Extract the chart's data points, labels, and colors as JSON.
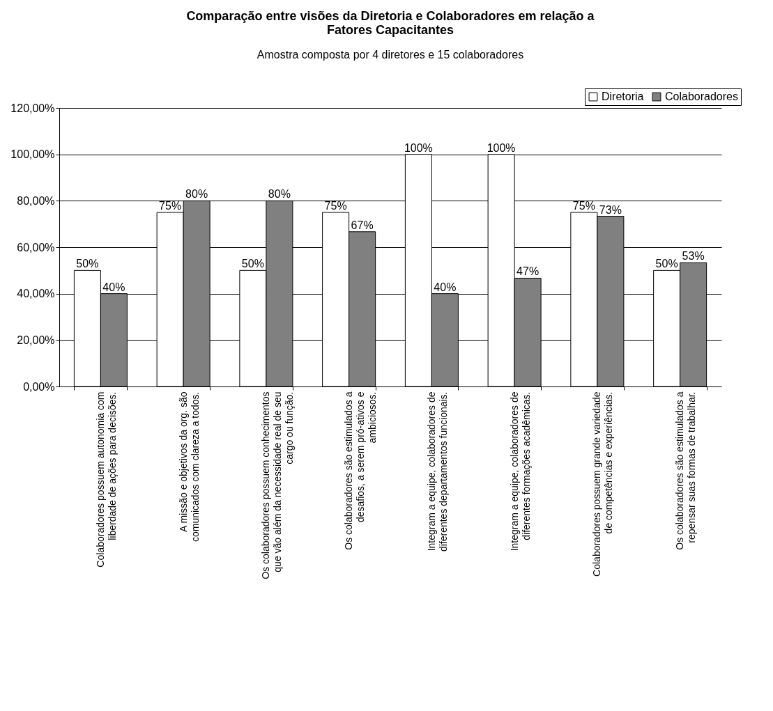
{
  "chart_data": {
    "type": "bar",
    "title": "Comparação entre visões da Diretoria e Colaboradores em relação a Fatores Capacitantes",
    "subtitle": "Amostra composta por 4 diretores e 15 colaboradores",
    "categories": [
      "Colaboradores possuem autonomia com liberdade de ações para decisões.",
      "A missão e objetivos da org. são comunicados com clareza a todos.",
      "Os colaboradores possuem conhecimentos que vão além da necessidade real de seu cargo ou função.",
      "Os colaboradores são estimulados a desafios, a serem pró-ativos e ambiciosos.",
      "Integram a equipe, colaboradores de diferentes departamentos funcionais.",
      "Integram a equipe, colaboradores de diferentes formações acadêmicas.",
      "Colaboradores possuem grande variedade de competências e experiências.",
      "Os colaboradores são estimulados a repensar suas formas de trabalhar."
    ],
    "series": [
      {
        "name": "Diretoria",
        "color": "#ffffff",
        "values": [
          50,
          75,
          50,
          75,
          100,
          100,
          75,
          50
        ],
        "value_labels": [
          "50%",
          "75%",
          "50%",
          "75%",
          "100%",
          "100%",
          "75%",
          "50%"
        ]
      },
      {
        "name": "Colaboradores",
        "color": "#808080",
        "values": [
          40,
          80,
          80,
          66.67,
          40,
          46.67,
          73.33,
          53.33
        ],
        "value_labels": [
          "40%",
          "80%",
          "80%",
          "67%",
          "40%",
          "47%",
          "73%",
          "53%"
        ]
      }
    ],
    "ylim": [
      0,
      120
    ],
    "yticks": [
      {
        "value": 0,
        "label": "0,00%"
      },
      {
        "value": 20,
        "label": "20,00%"
      },
      {
        "value": 40,
        "label": "40,00%"
      },
      {
        "value": 60,
        "label": "60,00%"
      },
      {
        "value": 80,
        "label": "80,00%"
      },
      {
        "value": 100,
        "label": "100,00%"
      },
      {
        "value": 120,
        "label": "120,00%"
      }
    ],
    "grid": "y",
    "legend": "top right"
  }
}
